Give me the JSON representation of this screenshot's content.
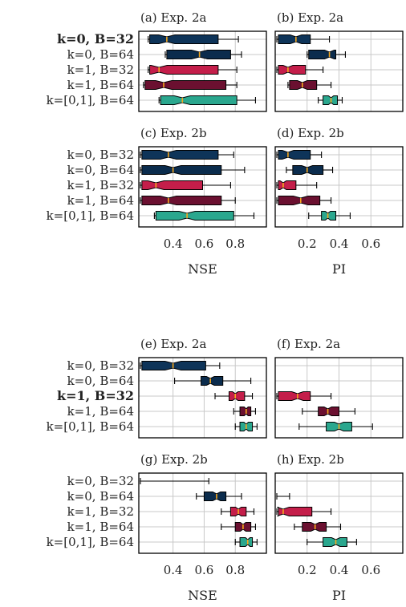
{
  "colors": {
    "k=0, B=32": "#0e3459",
    "k=0, B=64": "#0b2c4d",
    "k=1, B=32": "#c41e4a",
    "k=1, B=64": "#6b1030",
    "k=[0,1], B=64": "#2aa78e",
    "median": "#f7a81b"
  },
  "labels": [
    "k=0, B=32",
    "k=0, B=64",
    "k=1, B=32",
    "k=1, B=64",
    "k=[0,1], B=64"
  ],
  "chart_data": [
    {
      "type": "box",
      "title": "(a) Exp. 2a",
      "metric": "NSE",
      "bold_label": 0,
      "xlim": [
        0.18,
        1.0
      ],
      "xticks": [
        0.4,
        0.6,
        0.8
      ],
      "xtick_labels": [
        "0.4",
        "0.6",
        "0.8"
      ],
      "xlabel": "",
      "boxes": [
        {
          "label": "k=0, B=32",
          "whislo": 0.24,
          "q1": 0.25,
          "med": 0.36,
          "q3": 0.69,
          "whishi": 0.82
        },
        {
          "label": "k=0, B=64",
          "whislo": 0.35,
          "q1": 0.36,
          "med": 0.57,
          "q3": 0.77,
          "whishi": 0.84
        },
        {
          "label": "k=1, B=32",
          "whislo": 0.24,
          "q1": 0.25,
          "med": 0.31,
          "q3": 0.69,
          "whishi": 0.81
        },
        {
          "label": "k=1, B=64",
          "whislo": 0.21,
          "q1": 0.22,
          "med": 0.34,
          "q3": 0.74,
          "whishi": 0.81
        },
        {
          "label": "k=[0,1], B=64",
          "whislo": 0.31,
          "q1": 0.32,
          "med": 0.46,
          "q3": 0.81,
          "whishi": 0.93
        }
      ]
    },
    {
      "type": "box",
      "title": "(b) Exp. 2a",
      "metric": "PI",
      "xlim": [
        0.0,
        0.8
      ],
      "xticks": [
        0.2,
        0.4,
        0.6
      ],
      "xtick_labels": [
        "0.2",
        "0.4",
        "0.6"
      ],
      "xlabel": "",
      "boxes": [
        {
          "label": "k=0, B=32",
          "whislo": 0.01,
          "q1": 0.02,
          "med": 0.13,
          "q3": 0.22,
          "whishi": 0.34
        },
        {
          "label": "k=0, B=64",
          "whislo": 0.2,
          "q1": 0.21,
          "med": 0.34,
          "q3": 0.38,
          "whishi": 0.44
        },
        {
          "label": "k=1, B=32",
          "whislo": 0.01,
          "q1": 0.02,
          "med": 0.08,
          "q3": 0.19,
          "whishi": 0.3
        },
        {
          "label": "k=1, B=64",
          "whislo": 0.08,
          "q1": 0.09,
          "med": 0.17,
          "q3": 0.26,
          "whishi": 0.35
        },
        {
          "label": "k=[0,1], B=64",
          "whislo": 0.27,
          "q1": 0.3,
          "med": 0.35,
          "q3": 0.39,
          "whishi": 0.42
        }
      ]
    },
    {
      "type": "box",
      "title": "(c) Exp. 2b",
      "metric": "NSE",
      "xlim": [
        0.18,
        1.0
      ],
      "xticks": [
        0.4,
        0.6,
        0.8
      ],
      "xtick_labels": [
        "0.4",
        "0.6",
        "0.8"
      ],
      "xlabel": "NSE",
      "boxes": [
        {
          "label": "k=0, B=32",
          "whislo": 0.19,
          "q1": 0.2,
          "med": 0.37,
          "q3": 0.69,
          "whishi": 0.79
        },
        {
          "label": "k=0, B=64",
          "whislo": 0.19,
          "q1": 0.2,
          "med": 0.4,
          "q3": 0.71,
          "whishi": 0.86
        },
        {
          "label": "k=1, B=32",
          "whislo": 0.19,
          "q1": 0.2,
          "med": 0.29,
          "q3": 0.59,
          "whishi": 0.77
        },
        {
          "label": "k=1, B=64",
          "whislo": 0.19,
          "q1": 0.2,
          "med": 0.37,
          "q3": 0.71,
          "whishi": 0.8
        },
        {
          "label": "k=[0,1], B=64",
          "whislo": 0.28,
          "q1": 0.29,
          "med": 0.49,
          "q3": 0.79,
          "whishi": 0.92
        }
      ]
    },
    {
      "type": "box",
      "title": "(d) Exp. 2b",
      "metric": "PI",
      "xlim": [
        0.0,
        0.8
      ],
      "xticks": [
        0.2,
        0.4,
        0.6
      ],
      "xtick_labels": [
        "0.2",
        "0.4",
        "0.6"
      ],
      "xlabel": "PI",
      "boxes": [
        {
          "label": "k=0, B=32",
          "whislo": 0.01,
          "q1": 0.02,
          "med": 0.08,
          "q3": 0.22,
          "whishi": 0.29
        },
        {
          "label": "k=0, B=64",
          "whislo": 0.07,
          "q1": 0.11,
          "med": 0.2,
          "q3": 0.3,
          "whishi": 0.36
        },
        {
          "label": "k=1, B=32",
          "whislo": 0.01,
          "q1": 0.02,
          "med": 0.05,
          "q3": 0.13,
          "whishi": 0.26
        },
        {
          "label": "k=1, B=64",
          "whislo": 0.01,
          "q1": 0.02,
          "med": 0.16,
          "q3": 0.28,
          "whishi": 0.35
        },
        {
          "label": "k=[0,1], B=64",
          "whislo": 0.21,
          "q1": 0.29,
          "med": 0.33,
          "q3": 0.38,
          "whishi": 0.47
        }
      ]
    },
    {
      "type": "box",
      "title": "(e) Exp. 2a",
      "metric": "NSE",
      "bold_label": 2,
      "xlim": [
        0.18,
        1.0
      ],
      "xticks": [
        0.4,
        0.6,
        0.8
      ],
      "xtick_labels": [
        "0.4",
        "0.6",
        "0.8"
      ],
      "xlabel": "",
      "boxes": [
        {
          "label": "k=0, B=32",
          "whislo": 0.19,
          "q1": 0.2,
          "med": 0.4,
          "q3": 0.61,
          "whishi": 0.7
        },
        {
          "label": "k=0, B=64",
          "whislo": 0.41,
          "q1": 0.58,
          "med": 0.64,
          "q3": 0.72,
          "whishi": 0.9
        },
        {
          "label": "k=1, B=32",
          "whislo": 0.67,
          "q1": 0.76,
          "med": 0.8,
          "q3": 0.86,
          "whishi": 0.91
        },
        {
          "label": "k=1, B=64",
          "whislo": 0.79,
          "q1": 0.83,
          "med": 0.87,
          "q3": 0.9,
          "whishi": 0.93
        },
        {
          "label": "k=[0,1], B=64",
          "whislo": 0.8,
          "q1": 0.83,
          "med": 0.87,
          "q3": 0.91,
          "whishi": 0.94
        }
      ]
    },
    {
      "type": "box",
      "title": "(f) Exp. 2a",
      "metric": "PI",
      "xlim": [
        0.0,
        0.8
      ],
      "xticks": [
        0.2,
        0.4,
        0.6
      ],
      "xtick_labels": [
        "0.2",
        "0.4",
        "0.6"
      ],
      "xlabel": "",
      "boxes": [
        {
          "label": "k=1, B=32",
          "whislo": 0.01,
          "q1": 0.02,
          "med": 0.14,
          "q3": 0.22,
          "whishi": 0.35
        },
        {
          "label": "k=1, B=64",
          "whislo": 0.17,
          "q1": 0.27,
          "med": 0.33,
          "q3": 0.4,
          "whishi": 0.5
        },
        {
          "label": "k=[0,1], B=64",
          "whislo": 0.15,
          "q1": 0.32,
          "med": 0.4,
          "q3": 0.48,
          "whishi": 0.61
        }
      ]
    },
    {
      "type": "box",
      "title": "(g) Exp. 2b",
      "metric": "NSE",
      "xlim": [
        0.18,
        1.0
      ],
      "xticks": [
        0.4,
        0.6,
        0.8
      ],
      "xtick_labels": [
        "0.4",
        "0.6",
        "0.8"
      ],
      "xlabel": "NSE",
      "boxes": [
        {
          "label": "k=0, B=32",
          "whislo": 0.19,
          "q1": null,
          "med": null,
          "q3": null,
          "whishi": 0.63
        },
        {
          "label": "k=0, B=64",
          "whislo": 0.55,
          "q1": 0.6,
          "med": 0.68,
          "q3": 0.74,
          "whishi": 0.84
        },
        {
          "label": "k=1, B=32",
          "whislo": 0.71,
          "q1": 0.77,
          "med": 0.82,
          "q3": 0.87,
          "whishi": 0.92
        },
        {
          "label": "k=1, B=64",
          "whislo": 0.71,
          "q1": 0.8,
          "med": 0.85,
          "q3": 0.9,
          "whishi": 0.93
        },
        {
          "label": "k=[0,1], B=64",
          "whislo": 0.8,
          "q1": 0.83,
          "med": 0.88,
          "q3": 0.91,
          "whishi": 0.94
        }
      ]
    },
    {
      "type": "box",
      "title": "(h) Exp. 2b",
      "metric": "PI",
      "xlim": [
        0.0,
        0.8
      ],
      "xticks": [
        0.2,
        0.4,
        0.6
      ],
      "xtick_labels": [
        "0.2",
        "0.4",
        "0.6"
      ],
      "xlabel": "PI",
      "boxes": [
        {
          "label": "k=0, B=32",
          "whislo": null,
          "q1": null,
          "med": null,
          "q3": null,
          "whishi": null
        },
        {
          "label": "k=0, B=64",
          "whislo": 0.01,
          "q1": null,
          "med": null,
          "q3": null,
          "whishi": 0.09
        },
        {
          "label": "k=1, B=32",
          "whislo": 0.01,
          "q1": 0.02,
          "med": 0.05,
          "q3": 0.23,
          "whishi": 0.35
        },
        {
          "label": "k=1, B=64",
          "whislo": 0.12,
          "q1": 0.17,
          "med": 0.25,
          "q3": 0.32,
          "whishi": 0.41
        },
        {
          "label": "k=[0,1], B=64",
          "whislo": 0.2,
          "q1": 0.3,
          "med": 0.38,
          "q3": 0.45,
          "whishi": 0.51
        }
      ]
    }
  ]
}
